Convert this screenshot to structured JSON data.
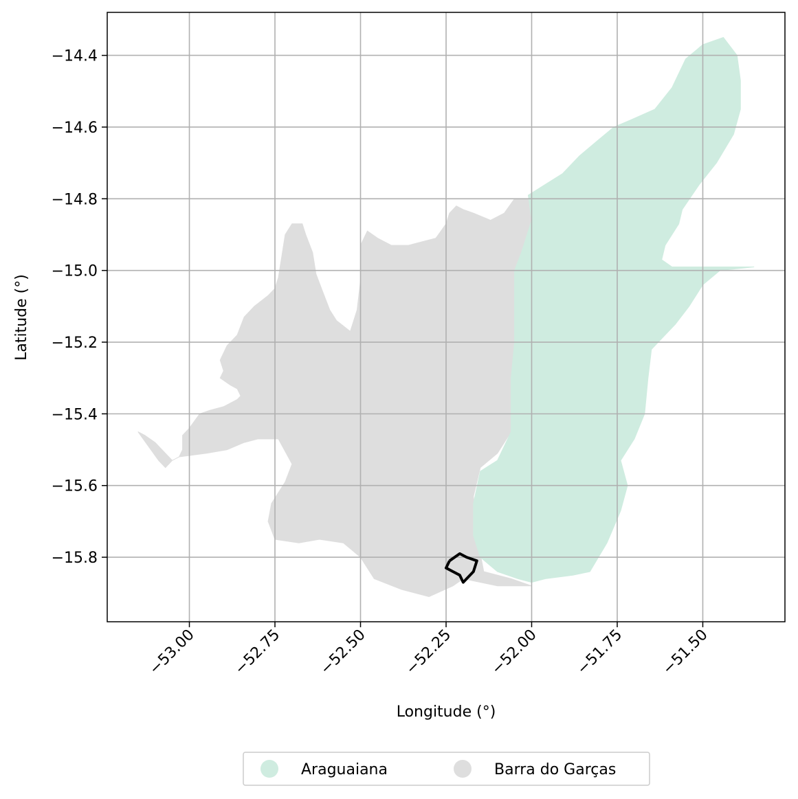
{
  "chart_data": {
    "type": "map",
    "xlabel": "Longitude (°)",
    "ylabel": "Latitude (°)",
    "xlim": [
      -53.24,
      -51.26
    ],
    "ylim": [
      -15.98,
      -14.28
    ],
    "x_ticks": [
      {
        "value": -53.0,
        "label": "−53.00"
      },
      {
        "value": -52.75,
        "label": "−52.75"
      },
      {
        "value": -52.5,
        "label": "−52.50"
      },
      {
        "value": -52.25,
        "label": "−52.25"
      },
      {
        "value": -52.0,
        "label": "−52.00"
      },
      {
        "value": -51.75,
        "label": "−51.75"
      },
      {
        "value": -51.5,
        "label": "−51.50"
      }
    ],
    "y_ticks": [
      {
        "value": -14.4,
        "label": "−14.4"
      },
      {
        "value": -14.6,
        "label": "−14.6"
      },
      {
        "value": -14.8,
        "label": "−14.8"
      },
      {
        "value": -15.0,
        "label": "−15.0"
      },
      {
        "value": -15.2,
        "label": "−15.2"
      },
      {
        "value": -15.4,
        "label": "−15.4"
      },
      {
        "value": -15.6,
        "label": "−15.6"
      },
      {
        "value": -15.8,
        "label": "−15.8"
      }
    ],
    "grid": true,
    "legend": {
      "placement": "bottom-center",
      "columns": 2,
      "entries": [
        {
          "label": "Araguaiana",
          "color": "#cfece0"
        },
        {
          "label": "Barra do Garças",
          "color": "#dedede"
        }
      ]
    },
    "regions": [
      {
        "name": "Barra do Garças",
        "color": "#dedede",
        "coords": [
          [
            -53.15,
            -15.45
          ],
          [
            -53.09,
            -15.53
          ],
          [
            -53.07,
            -15.55
          ],
          [
            -53.05,
            -15.53
          ],
          [
            -53.03,
            -15.52
          ],
          [
            -53.02,
            -15.5
          ],
          [
            -53.02,
            -15.46
          ],
          [
            -53.0,
            -15.44
          ],
          [
            -52.97,
            -15.4
          ],
          [
            -52.94,
            -15.39
          ],
          [
            -52.9,
            -15.38
          ],
          [
            -52.86,
            -15.36
          ],
          [
            -52.85,
            -15.35
          ],
          [
            -52.86,
            -15.33
          ],
          [
            -52.88,
            -15.32
          ],
          [
            -52.91,
            -15.3
          ],
          [
            -52.9,
            -15.28
          ],
          [
            -52.91,
            -15.25
          ],
          [
            -52.89,
            -15.21
          ],
          [
            -52.86,
            -15.18
          ],
          [
            -52.84,
            -15.13
          ],
          [
            -52.81,
            -15.1
          ],
          [
            -52.77,
            -15.07
          ],
          [
            -52.75,
            -15.05
          ],
          [
            -52.74,
            -15.02
          ],
          [
            -52.73,
            -14.96
          ],
          [
            -52.72,
            -14.9
          ],
          [
            -52.7,
            -14.87
          ],
          [
            -52.67,
            -14.87
          ],
          [
            -52.66,
            -14.9
          ],
          [
            -52.64,
            -14.95
          ],
          [
            -52.63,
            -15.01
          ],
          [
            -52.61,
            -15.06
          ],
          [
            -52.59,
            -15.11
          ],
          [
            -52.57,
            -15.14
          ],
          [
            -52.53,
            -15.17
          ],
          [
            -52.51,
            -15.11
          ],
          [
            -52.5,
            -15.03
          ],
          [
            -52.5,
            -14.93
          ],
          [
            -52.48,
            -14.89
          ],
          [
            -52.45,
            -14.91
          ],
          [
            -52.41,
            -14.93
          ],
          [
            -52.36,
            -14.93
          ],
          [
            -52.32,
            -14.92
          ],
          [
            -52.28,
            -14.91
          ],
          [
            -52.25,
            -14.87
          ],
          [
            -52.24,
            -14.84
          ],
          [
            -52.22,
            -14.82
          ],
          [
            -52.2,
            -14.83
          ],
          [
            -52.17,
            -14.84
          ],
          [
            -52.12,
            -14.86
          ],
          [
            -52.08,
            -14.84
          ],
          [
            -52.05,
            -14.8
          ],
          [
            -52.01,
            -14.8
          ],
          [
            -52.0,
            -14.86
          ],
          [
            -51.99,
            -14.93
          ],
          [
            -52.03,
            -14.97
          ],
          [
            -52.05,
            -15.0
          ],
          [
            -52.05,
            -15.1
          ],
          [
            -52.05,
            -15.2
          ],
          [
            -52.06,
            -15.3
          ],
          [
            -52.06,
            -15.4
          ],
          [
            -52.06,
            -15.45
          ],
          [
            -52.1,
            -15.51
          ],
          [
            -52.15,
            -15.55
          ],
          [
            -52.17,
            -15.63
          ],
          [
            -52.16,
            -15.74
          ],
          [
            -52.14,
            -15.84
          ],
          [
            -52.06,
            -15.86
          ],
          [
            -52.0,
            -15.88
          ],
          [
            -52.1,
            -15.88
          ],
          [
            -52.2,
            -15.86
          ],
          [
            -52.23,
            -15.88
          ],
          [
            -52.3,
            -15.91
          ],
          [
            -52.38,
            -15.89
          ],
          [
            -52.46,
            -15.86
          ],
          [
            -52.5,
            -15.8
          ],
          [
            -52.55,
            -15.76
          ],
          [
            -52.62,
            -15.75
          ],
          [
            -52.68,
            -15.76
          ],
          [
            -52.75,
            -15.75
          ],
          [
            -52.77,
            -15.7
          ],
          [
            -52.76,
            -15.65
          ],
          [
            -52.72,
            -15.59
          ],
          [
            -52.7,
            -15.54
          ],
          [
            -52.74,
            -15.47
          ],
          [
            -52.8,
            -15.47
          ],
          [
            -52.84,
            -15.48
          ],
          [
            -52.89,
            -15.5
          ],
          [
            -52.95,
            -15.51
          ],
          [
            -53.03,
            -15.52
          ],
          [
            -53.05,
            -15.53
          ],
          [
            -53.1,
            -15.48
          ],
          [
            -53.13,
            -15.46
          ]
        ]
      },
      {
        "name": "Araguaiana",
        "color": "#cfece0",
        "coords": [
          [
            -51.5,
            -14.37
          ],
          [
            -51.44,
            -14.35
          ],
          [
            -51.4,
            -14.4
          ],
          [
            -51.39,
            -14.47
          ],
          [
            -51.39,
            -14.55
          ],
          [
            -51.41,
            -14.62
          ],
          [
            -51.46,
            -14.7
          ],
          [
            -51.51,
            -14.76
          ],
          [
            -51.56,
            -14.83
          ],
          [
            -51.57,
            -14.87
          ],
          [
            -51.61,
            -14.93
          ],
          [
            -51.62,
            -14.97
          ],
          [
            -51.59,
            -14.99
          ],
          [
            -51.35,
            -14.99
          ],
          [
            -51.45,
            -15.0
          ],
          [
            -51.5,
            -15.04
          ],
          [
            -51.54,
            -15.1
          ],
          [
            -51.58,
            -15.15
          ],
          [
            -51.62,
            -15.19
          ],
          [
            -51.65,
            -15.22
          ],
          [
            -51.66,
            -15.3
          ],
          [
            -51.67,
            -15.4
          ],
          [
            -51.7,
            -15.47
          ],
          [
            -51.74,
            -15.53
          ],
          [
            -51.72,
            -15.6
          ],
          [
            -51.74,
            -15.67
          ],
          [
            -51.78,
            -15.76
          ],
          [
            -51.83,
            -15.84
          ],
          [
            -51.88,
            -15.85
          ],
          [
            -51.96,
            -15.86
          ],
          [
            -52.0,
            -15.87
          ],
          [
            -52.04,
            -15.86
          ],
          [
            -52.1,
            -15.84
          ],
          [
            -52.15,
            -15.8
          ],
          [
            -52.17,
            -15.74
          ],
          [
            -52.17,
            -15.65
          ],
          [
            -52.15,
            -15.56
          ],
          [
            -52.1,
            -15.53
          ],
          [
            -52.06,
            -15.45
          ],
          [
            -52.06,
            -15.4
          ],
          [
            -52.06,
            -15.3
          ],
          [
            -52.05,
            -15.2
          ],
          [
            -52.05,
            -15.1
          ],
          [
            -52.05,
            -15.0
          ],
          [
            -52.03,
            -14.95
          ],
          [
            -52.0,
            -14.86
          ],
          [
            -52.01,
            -14.79
          ],
          [
            -51.96,
            -14.76
          ],
          [
            -51.91,
            -14.73
          ],
          [
            -51.86,
            -14.68
          ],
          [
            -51.81,
            -14.64
          ],
          [
            -51.76,
            -14.6
          ],
          [
            -51.71,
            -14.58
          ],
          [
            -51.64,
            -14.55
          ],
          [
            -51.59,
            -14.49
          ],
          [
            -51.55,
            -14.41
          ]
        ]
      }
    ],
    "outline": {
      "name": "boundary-outline",
      "color": "#000000",
      "coords": [
        [
          -52.24,
          -15.81
        ],
        [
          -52.21,
          -15.79
        ],
        [
          -52.19,
          -15.8
        ],
        [
          -52.16,
          -15.81
        ],
        [
          -52.17,
          -15.84
        ],
        [
          -52.2,
          -15.87
        ],
        [
          -52.21,
          -15.85
        ],
        [
          -52.23,
          -15.84
        ],
        [
          -52.25,
          -15.83
        ],
        [
          -52.24,
          -15.81
        ]
      ]
    }
  }
}
